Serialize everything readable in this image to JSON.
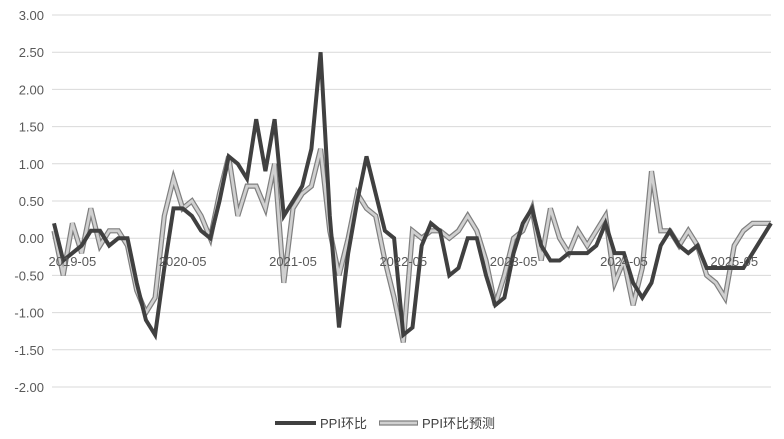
{
  "chart_data": {
    "type": "line",
    "title": "",
    "xlabel": "",
    "ylabel": "",
    "ylim": [
      -2.0,
      3.0
    ],
    "y_ticks": [
      "3.00",
      "2.50",
      "2.00",
      "1.50",
      "1.00",
      "0.50",
      "0.00",
      "-0.50",
      "-1.00",
      "-1.50",
      "-2.00"
    ],
    "x_tick_labels": [
      "2019-05",
      "2020-05",
      "2021-05",
      "2022-05",
      "2023-05",
      "2024-05",
      "2025-05"
    ],
    "grid": "horizontal",
    "legend_position": "bottom",
    "x": [
      "2019-03",
      "2019-04",
      "2019-05",
      "2019-06",
      "2019-07",
      "2019-08",
      "2019-09",
      "2019-10",
      "2019-11",
      "2019-12",
      "2020-01",
      "2020-02",
      "2020-03",
      "2020-04",
      "2020-05",
      "2020-06",
      "2020-07",
      "2020-08",
      "2020-09",
      "2020-10",
      "2020-11",
      "2020-12",
      "2021-01",
      "2021-02",
      "2021-03",
      "2021-04",
      "2021-05",
      "2021-06",
      "2021-07",
      "2021-08",
      "2021-09",
      "2021-10",
      "2021-11",
      "2021-12",
      "2022-01",
      "2022-02",
      "2022-03",
      "2022-04",
      "2022-05",
      "2022-06",
      "2022-07",
      "2022-08",
      "2022-09",
      "2022-10",
      "2022-11",
      "2022-12",
      "2023-01",
      "2023-02",
      "2023-03",
      "2023-04",
      "2023-05",
      "2023-06",
      "2023-07",
      "2023-08",
      "2023-09",
      "2023-10",
      "2023-11",
      "2023-12",
      "2024-01",
      "2024-02",
      "2024-03",
      "2024-04",
      "2024-05",
      "2024-06",
      "2024-07",
      "2024-08",
      "2024-09",
      "2024-10",
      "2024-11",
      "2024-12",
      "2025-01",
      "2025-02",
      "2025-03",
      "2025-04",
      "2025-05",
      "2025-06",
      "2025-07",
      "2025-08",
      "2025-09"
    ],
    "series": [
      {
        "name": "PPI环比",
        "color": "#404040",
        "values": [
          0.2,
          -0.3,
          -0.2,
          -0.1,
          0.1,
          0.1,
          -0.1,
          0.0,
          0.0,
          -0.6,
          -1.1,
          -1.3,
          -0.4,
          0.4,
          0.4,
          0.3,
          0.1,
          0.0,
          0.5,
          1.1,
          1.0,
          0.8,
          1.6,
          0.9,
          1.6,
          0.3,
          0.5,
          0.7,
          1.2,
          2.5,
          0.3,
          -1.2,
          -0.2,
          0.5,
          1.1,
          0.6,
          0.1,
          0.0,
          -1.3,
          -1.2,
          -0.1,
          0.2,
          0.1,
          -0.5,
          -0.4,
          0.0,
          0.0,
          -0.5,
          -0.9,
          -0.8,
          -0.2,
          0.2,
          0.4,
          -0.1,
          -0.3,
          -0.3,
          -0.2,
          -0.2,
          -0.2,
          -0.1,
          0.2,
          -0.2,
          -0.2,
          -0.6,
          -0.8,
          -0.6,
          -0.1,
          0.1,
          -0.1,
          -0.2,
          -0.1,
          -0.4,
          -0.4,
          -0.4,
          -0.4,
          -0.4,
          -0.2,
          0.0,
          0.2
        ]
      },
      {
        "name": "PPI环比预测",
        "color": "#b0b0b0",
        "values": [
          0.1,
          -0.5,
          0.2,
          -0.2,
          0.4,
          -0.1,
          0.1,
          0.1,
          -0.1,
          -0.7,
          -1.0,
          -0.8,
          0.3,
          0.8,
          0.4,
          0.5,
          0.3,
          0.0,
          0.6,
          1.1,
          0.3,
          0.7,
          0.7,
          0.4,
          1.0,
          -0.6,
          0.4,
          0.6,
          0.7,
          1.2,
          0.1,
          -0.5,
          0.0,
          0.6,
          0.4,
          0.3,
          -0.3,
          -0.8,
          -1.4,
          0.1,
          0.0,
          0.1,
          0.1,
          0.0,
          0.1,
          0.3,
          0.1,
          -0.3,
          -0.9,
          -0.5,
          0.0,
          0.1,
          0.4,
          -0.3,
          0.4,
          0.0,
          -0.2,
          0.1,
          -0.1,
          0.1,
          0.3,
          -0.6,
          -0.3,
          -0.9,
          -0.4,
          0.9,
          0.1,
          0.1,
          -0.1,
          0.1,
          -0.1,
          -0.5,
          -0.6,
          -0.8,
          -0.1,
          0.1,
          0.2,
          0.2,
          0.2
        ]
      }
    ]
  }
}
